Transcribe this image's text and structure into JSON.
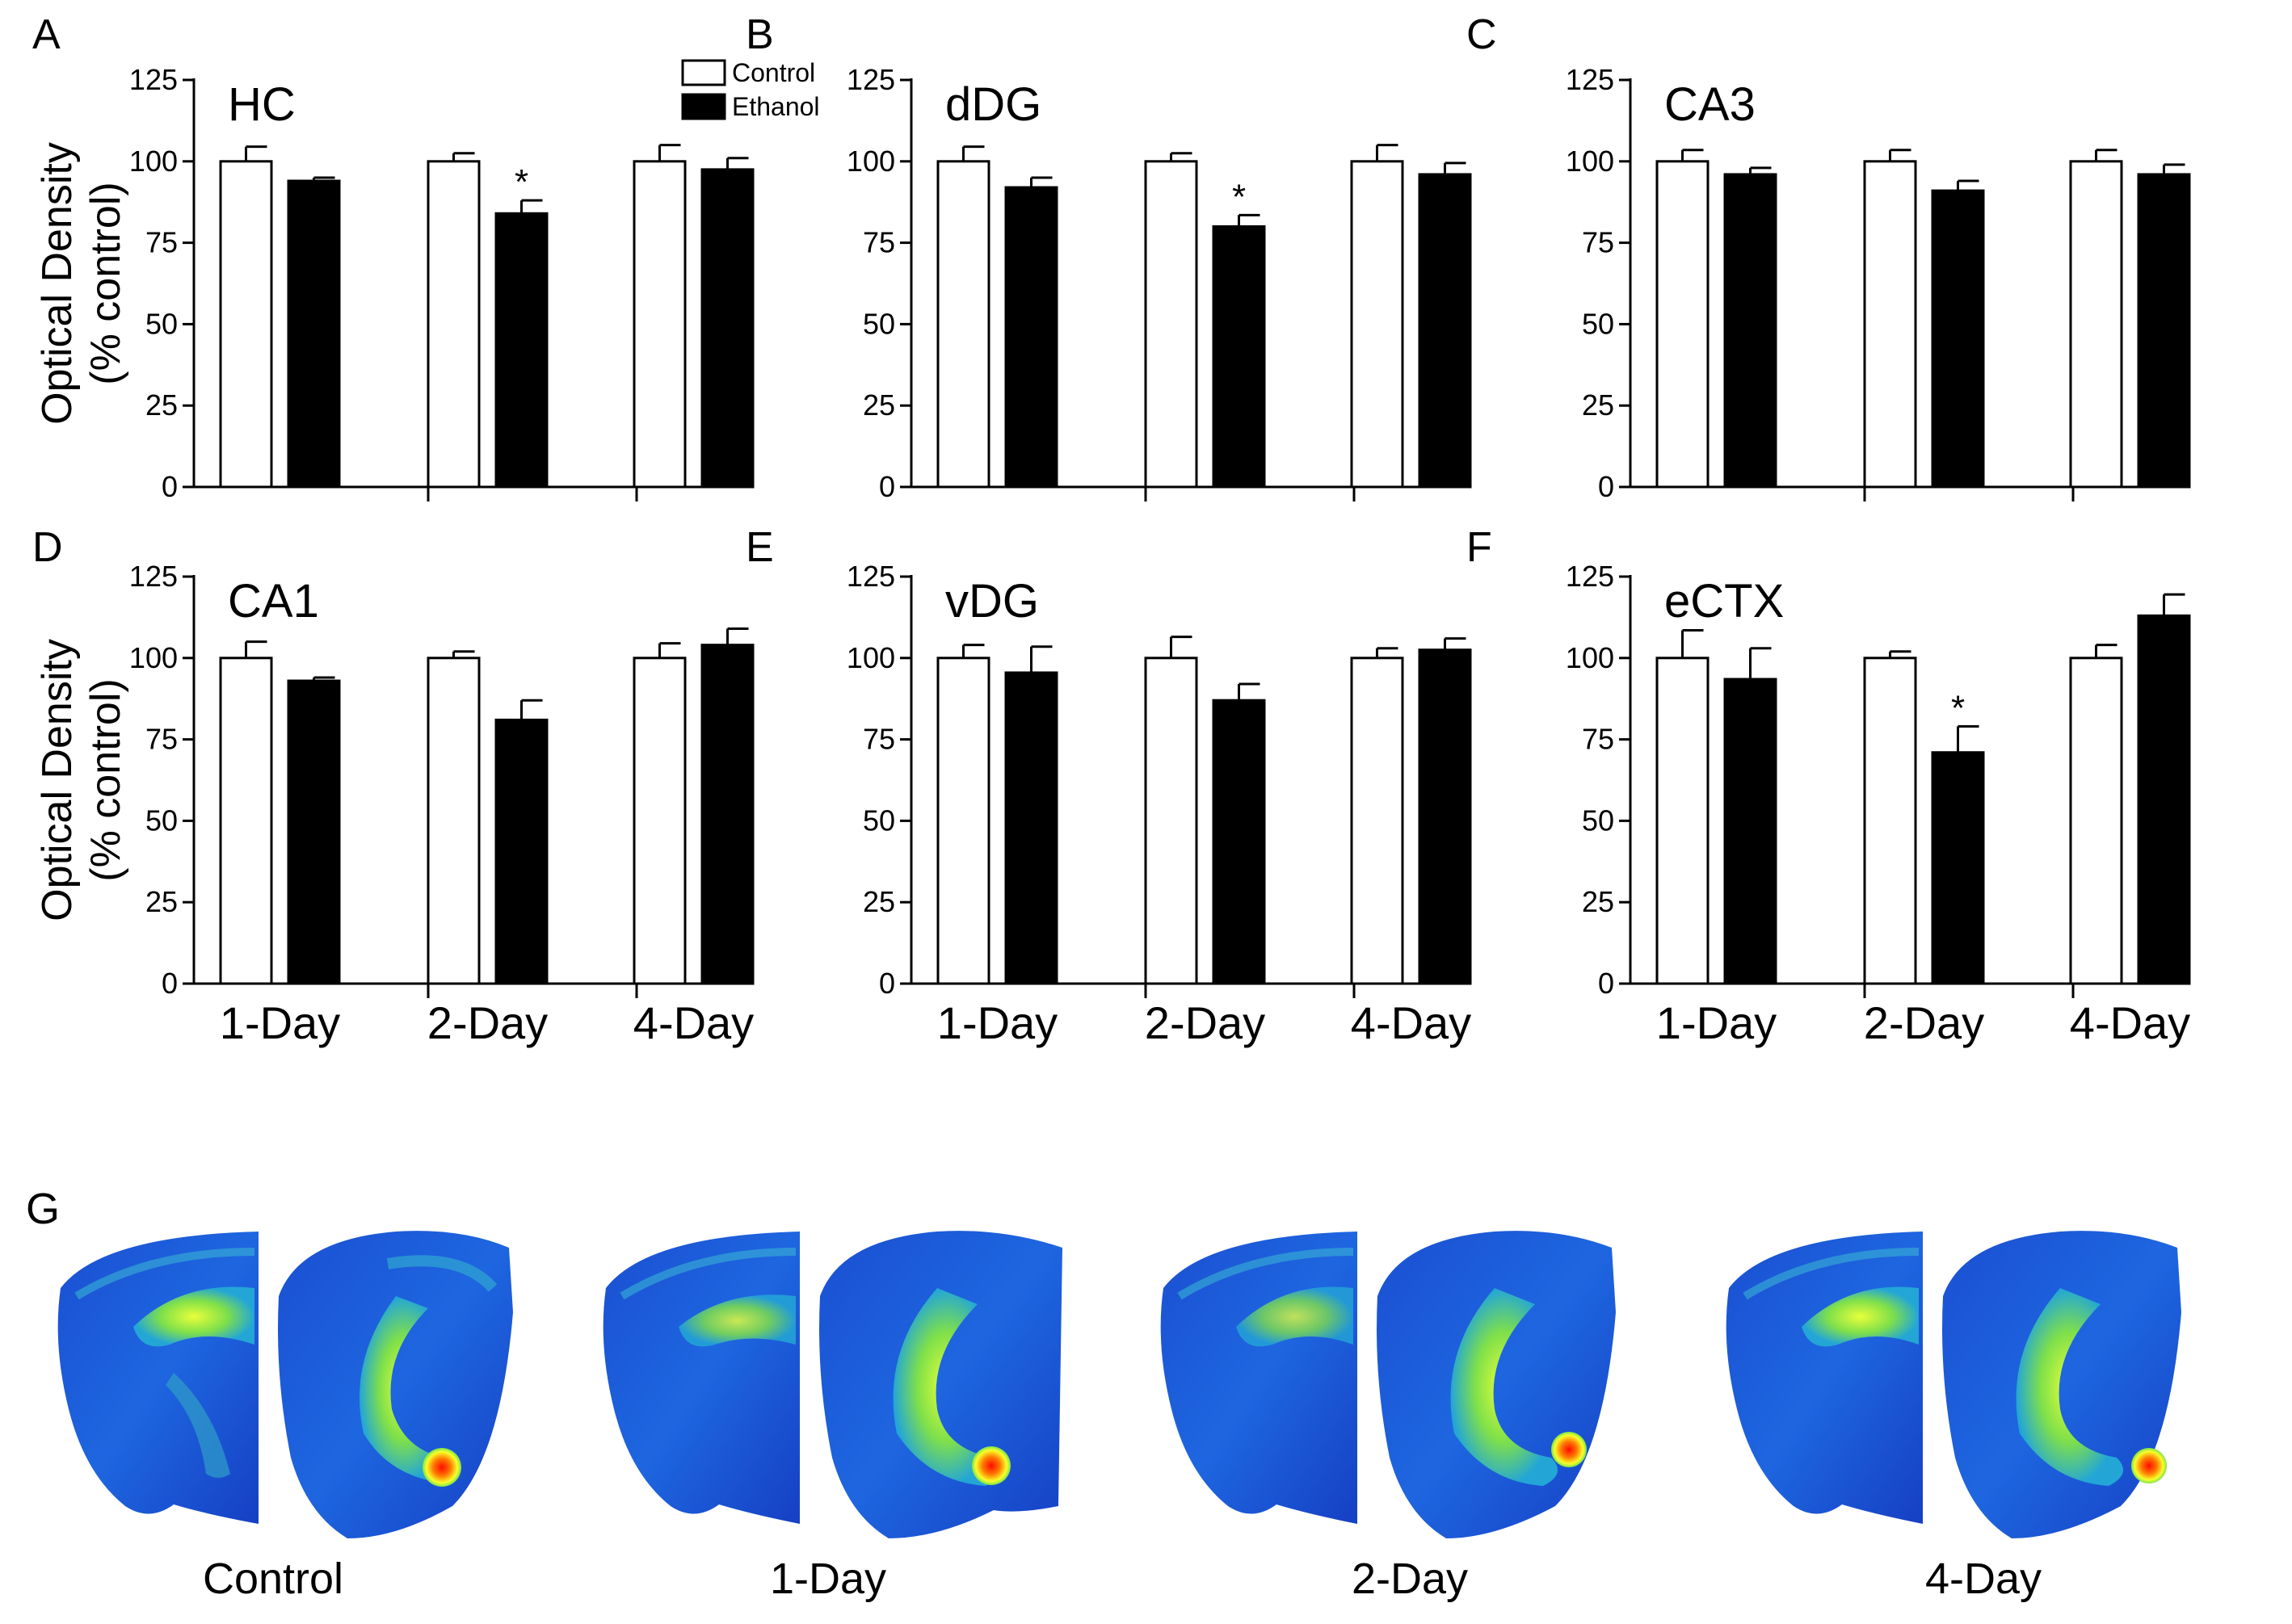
{
  "figure_label_g": "G",
  "legend": {
    "entries": [
      {
        "label": "Control",
        "color": "#ffffff"
      },
      {
        "label": "Ethanol",
        "color": "#000000"
      }
    ]
  },
  "ylabel_lines": [
    "Optical Density",
    "(% control)"
  ],
  "colors": {
    "control": "#ffffff",
    "ethanol": "#000000",
    "axis": "#000000"
  },
  "chart_data": [
    {
      "type": "bar",
      "panel": "A",
      "title": "HC",
      "categories": [
        "1-Day",
        "2-Day",
        "4-Day"
      ],
      "yticks": [
        0,
        25,
        50,
        75,
        100,
        125
      ],
      "ylim": [
        0,
        125
      ],
      "ylabel": "Optical Density (% control)",
      "series": [
        {
          "name": "Control",
          "values": [
            100,
            100,
            100
          ],
          "errors": [
            4.5,
            2.5,
            5
          ]
        },
        {
          "name": "Ethanol",
          "values": [
            94,
            84,
            97.5
          ],
          "errors": [
            1,
            4,
            3.5
          ]
        }
      ],
      "significance": [
        {
          "series": "Ethanol",
          "category": "2-Day",
          "mark": "*"
        }
      ]
    },
    {
      "type": "bar",
      "panel": "B",
      "title": "dDG",
      "categories": [
        "1-Day",
        "2-Day",
        "4-Day"
      ],
      "yticks": [
        0,
        25,
        50,
        75,
        100,
        125
      ],
      "ylim": [
        0,
        125
      ],
      "ylabel": "",
      "series": [
        {
          "name": "Control",
          "values": [
            100,
            100,
            100
          ],
          "errors": [
            4.5,
            2.5,
            5
          ]
        },
        {
          "name": "Ethanol",
          "values": [
            92,
            80,
            96
          ],
          "errors": [
            3,
            3.5,
            3.5
          ]
        }
      ],
      "significance": [
        {
          "series": "Ethanol",
          "category": "2-Day",
          "mark": "*"
        }
      ]
    },
    {
      "type": "bar",
      "panel": "C",
      "title": "CA3",
      "categories": [
        "1-Day",
        "2-Day",
        "4-Day"
      ],
      "yticks": [
        0,
        25,
        50,
        75,
        100,
        125
      ],
      "ylim": [
        0,
        125
      ],
      "ylabel": "",
      "series": [
        {
          "name": "Control",
          "values": [
            100,
            100,
            100
          ],
          "errors": [
            3.5,
            3.5,
            3.5
          ]
        },
        {
          "name": "Ethanol",
          "values": [
            96,
            91,
            96
          ],
          "errors": [
            2,
            3,
            3
          ]
        }
      ],
      "significance": []
    },
    {
      "type": "bar",
      "panel": "D",
      "title": "CA1",
      "categories": [
        "1-Day",
        "2-Day",
        "4-Day"
      ],
      "yticks": [
        0,
        25,
        50,
        75,
        100,
        125
      ],
      "ylim": [
        0,
        125
      ],
      "ylabel": "Optical Density (% control)",
      "series": [
        {
          "name": "Control",
          "values": [
            100,
            100,
            100
          ],
          "errors": [
            5,
            2,
            4.5
          ]
        },
        {
          "name": "Ethanol",
          "values": [
            93,
            81,
            104
          ],
          "errors": [
            1,
            6,
            5
          ]
        }
      ],
      "significance": []
    },
    {
      "type": "bar",
      "panel": "E",
      "title": "vDG",
      "categories": [
        "1-Day",
        "2-Day",
        "4-Day"
      ],
      "yticks": [
        0,
        25,
        50,
        75,
        100,
        125
      ],
      "ylim": [
        0,
        125
      ],
      "ylabel": "",
      "series": [
        {
          "name": "Control",
          "values": [
            100,
            100,
            100
          ],
          "errors": [
            4,
            6.5,
            3
          ]
        },
        {
          "name": "Ethanol",
          "values": [
            95.5,
            87,
            102.5
          ],
          "errors": [
            8,
            5,
            3.5
          ]
        }
      ],
      "significance": []
    },
    {
      "type": "bar",
      "panel": "F",
      "title": "eCTX",
      "categories": [
        "1-Day",
        "2-Day",
        "4-Day"
      ],
      "yticks": [
        0,
        25,
        50,
        75,
        100,
        125
      ],
      "ylim": [
        0,
        125
      ],
      "ylabel": "",
      "series": [
        {
          "name": "Control",
          "values": [
            100,
            100,
            100
          ],
          "errors": [
            8.5,
            2,
            4
          ]
        },
        {
          "name": "Ethanol",
          "values": [
            93.5,
            71,
            113
          ],
          "errors": [
            9.5,
            8,
            6.5
          ]
        }
      ],
      "significance": [
        {
          "series": "Ethanol",
          "category": "2-Day",
          "mark": "*"
        }
      ]
    }
  ],
  "images": {
    "description_labels": [
      "Control",
      "1-Day",
      "2-Day",
      "4-Day"
    ]
  }
}
